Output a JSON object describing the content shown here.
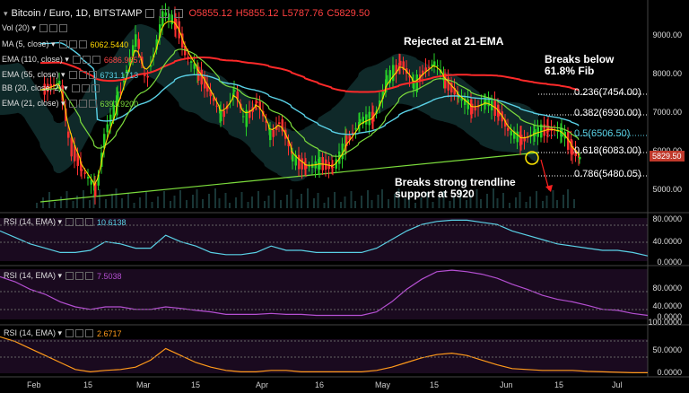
{
  "header": {
    "symbol": "Bitcoin / Euro, 1D, BITSTAMP",
    "open": "O5855.12",
    "high": "H5855.12",
    "low": "L5787.76",
    "close": "C5829.50"
  },
  "main_indicators": [
    {
      "name": "Vol (20)",
      "value": "",
      "color": "#dddddd"
    },
    {
      "name": "MA (5, close)",
      "value": "6062.5440",
      "color": "#ffd700"
    },
    {
      "name": "EMA (110, close)",
      "value": "6686.9657",
      "color": "#ff4444"
    },
    {
      "name": "EMA (55, close)",
      "value": "6731.1713",
      "color": "#5ad1e6"
    },
    {
      "name": "BB (20, close, 2)",
      "value": "",
      "color": "#dddddd"
    },
    {
      "name": "EMA (21, close)",
      "value": "6391.9200",
      "color": "#7cdc3c"
    }
  ],
  "annotations": {
    "rejected": "Rejected at 21-EMA",
    "breaks_fib": "Breaks below\n61.8% Fib",
    "breaks_trend": "Breaks strong trendline\nsupport at 5920"
  },
  "fib_levels": [
    {
      "label": "0.236(7454.00)",
      "value": 7454,
      "color": "#ffffff"
    },
    {
      "label": "0.382(6930.00)",
      "value": 6930,
      "color": "#ffffff"
    },
    {
      "label": "0.5(6506.50)",
      "value": 6506.5,
      "color": "#5ad1e6"
    },
    {
      "label": "0.618(6083.00)",
      "value": 6083,
      "color": "#ffffff"
    },
    {
      "label": "0.786(5480.05)",
      "value": 5480.05,
      "color": "#ffffff"
    }
  ],
  "price_axis": [
    "9000.00",
    "8000.00",
    "7000.00",
    "6000.00",
    "5000.00"
  ],
  "last_price_tag": "5829.50",
  "rsi_panels": [
    {
      "label": "RSI (14, EMA)",
      "value": "10.6138",
      "color": "#5ad1e6",
      "ticks": [
        "80.0000",
        "40.0000",
        "0.0000"
      ]
    },
    {
      "label": "RSI (14, EMA)",
      "value": "7.5038",
      "color": "#b44fd1",
      "ticks": [
        "80.0000",
        "40.0000",
        "0.0000"
      ]
    },
    {
      "label": "RSI (14, EMA)",
      "value": "2.6717",
      "color": "#ff9a1a",
      "ticks": [
        "100.0000",
        "50.0000",
        "0.0000"
      ]
    }
  ],
  "time_axis": [
    "Feb",
    "15",
    "Mar",
    "15",
    "Apr",
    "16",
    "May",
    "15",
    "Jun",
    "15",
    "Jul"
  ],
  "chart_data": {
    "type": "line",
    "title": "Bitcoin / Euro, 1D, BITSTAMP",
    "x": [
      "Feb",
      "15",
      "Mar",
      "15",
      "Apr",
      "16",
      "May",
      "15",
      "Jun",
      "15",
      "Jul"
    ],
    "ylim": [
      4600,
      9800
    ],
    "series": [
      {
        "name": "Price",
        "values": [
          6200,
          8100,
          9300,
          6900,
          5500,
          5900,
          8000,
          7200,
          6300,
          5829,
          null
        ]
      },
      {
        "name": "MA (5, close)",
        "values": [
          6300,
          8000,
          9100,
          7000,
          5600,
          6000,
          7900,
          7100,
          6400,
          6062,
          null
        ]
      },
      {
        "name": "EMA (110, close)",
        "values": [
          8600,
          8300,
          8300,
          8000,
          7600,
          7500,
          7500,
          7200,
          7100,
          6687,
          null
        ]
      },
      {
        "name": "EMA (55, close)",
        "values": [
          8200,
          8000,
          8700,
          7900,
          7000,
          6800,
          7200,
          7000,
          6800,
          6731,
          null
        ]
      },
      {
        "name": "EMA (21, close)",
        "values": [
          7200,
          7800,
          8600,
          7500,
          6300,
          6000,
          7300,
          7000,
          6600,
          6392,
          null
        ]
      }
    ]
  }
}
